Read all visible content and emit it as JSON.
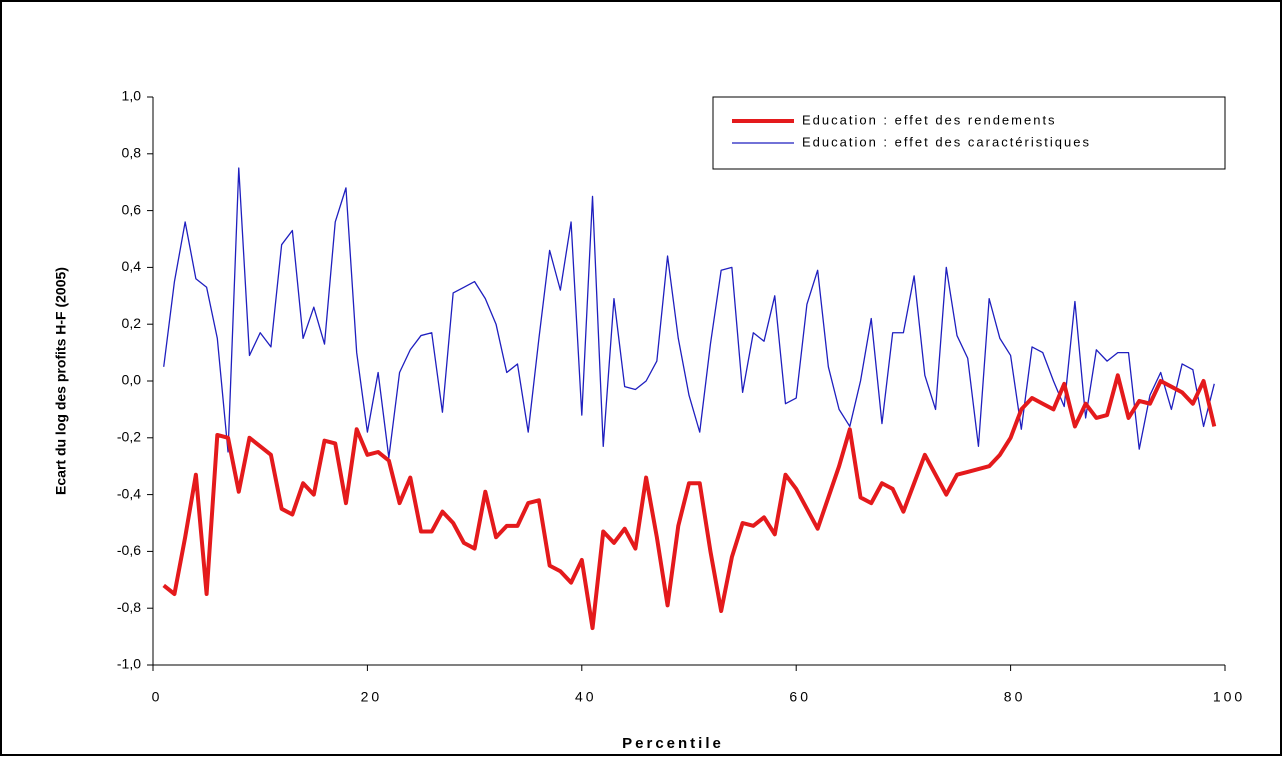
{
  "chart_data": {
    "type": "line",
    "xlabel": "Percentile",
    "ylabel": "Ecart du log des profits H-F (2005)",
    "x": [
      1,
      2,
      3,
      4,
      5,
      6,
      7,
      8,
      9,
      10,
      11,
      12,
      13,
      14,
      15,
      16,
      17,
      18,
      19,
      20,
      21,
      22,
      23,
      24,
      25,
      26,
      27,
      28,
      29,
      30,
      31,
      32,
      33,
      34,
      35,
      36,
      37,
      38,
      39,
      40,
      41,
      42,
      43,
      44,
      45,
      46,
      47,
      48,
      49,
      50,
      51,
      52,
      53,
      54,
      55,
      56,
      57,
      58,
      59,
      60,
      61,
      62,
      63,
      64,
      65,
      66,
      67,
      68,
      69,
      70,
      71,
      72,
      73,
      74,
      75,
      76,
      77,
      78,
      79,
      80,
      81,
      82,
      83,
      84,
      85,
      86,
      87,
      88,
      89,
      90,
      91,
      92,
      93,
      94,
      95,
      96,
      97,
      98,
      99
    ],
    "series": [
      {
        "name": "Education : effet des rendements",
        "color": "#e41a1c",
        "width": 4,
        "values": [
          -0.72,
          -0.75,
          -0.55,
          -0.33,
          -0.75,
          -0.19,
          -0.2,
          -0.39,
          -0.2,
          -0.23,
          -0.26,
          -0.45,
          -0.47,
          -0.36,
          -0.4,
          -0.21,
          -0.22,
          -0.43,
          -0.17,
          -0.26,
          -0.25,
          -0.28,
          -0.43,
          -0.34,
          -0.53,
          -0.53,
          -0.46,
          -0.5,
          -0.57,
          -0.59,
          -0.39,
          -0.55,
          -0.51,
          -0.51,
          -0.43,
          -0.42,
          -0.65,
          -0.67,
          -0.71,
          -0.63,
          -0.87,
          -0.53,
          -0.57,
          -0.52,
          -0.59,
          -0.34,
          -0.55,
          -0.79,
          -0.51,
          -0.36,
          -0.36,
          -0.6,
          -0.81,
          -0.62,
          -0.5,
          -0.51,
          -0.48,
          -0.54,
          -0.33,
          -0.38,
          -0.45,
          -0.52,
          -0.41,
          -0.3,
          -0.17,
          -0.41,
          -0.43,
          -0.36,
          -0.38,
          -0.46,
          -0.36,
          -0.26,
          -0.33,
          -0.4,
          -0.33,
          -0.32,
          -0.31,
          -0.3,
          -0.26,
          -0.2,
          -0.1,
          -0.06,
          -0.08,
          -0.1,
          -0.01,
          -0.16,
          -0.08,
          -0.13,
          -0.12,
          0.02,
          -0.13,
          -0.07,
          -0.08,
          0.0,
          -0.02,
          -0.04,
          -0.08,
          0.0,
          -0.16
        ]
      },
      {
        "name": "Education : effet des caractéristiques",
        "color": "#1f1fbf",
        "width": 1.3,
        "values": [
          0.05,
          0.35,
          0.56,
          0.36,
          0.33,
          0.15,
          -0.25,
          0.75,
          0.09,
          0.17,
          0.12,
          0.48,
          0.53,
          0.15,
          0.26,
          0.13,
          0.56,
          0.68,
          0.1,
          -0.18,
          0.03,
          -0.27,
          0.03,
          0.11,
          0.16,
          0.17,
          -0.11,
          0.31,
          0.33,
          0.35,
          0.29,
          0.2,
          0.03,
          0.06,
          -0.18,
          0.15,
          0.46,
          0.32,
          0.56,
          -0.12,
          0.65,
          -0.23,
          0.29,
          -0.02,
          -0.03,
          0.0,
          0.07,
          0.44,
          0.15,
          -0.05,
          -0.18,
          0.13,
          0.39,
          0.4,
          -0.04,
          0.17,
          0.14,
          0.3,
          -0.08,
          -0.06,
          0.27,
          0.39,
          0.05,
          -0.1,
          -0.16,
          0.0,
          0.22,
          -0.15,
          0.17,
          0.17,
          0.37,
          0.02,
          -0.1,
          0.4,
          0.16,
          0.08,
          -0.23,
          0.29,
          0.15,
          0.09,
          -0.17,
          0.12,
          0.1,
          0.0,
          -0.09,
          0.28,
          -0.13,
          0.11,
          0.07,
          0.1,
          0.1,
          -0.24,
          -0.05,
          0.03,
          -0.1,
          0.06,
          0.04,
          -0.16,
          -0.01
        ]
      }
    ],
    "xlim": [
      0,
      100
    ],
    "xticks": [
      0,
      20,
      40,
      60,
      80,
      100
    ],
    "ylim": [
      -1,
      1
    ],
    "yticks": [
      {
        "value": -1,
        "label": "-1,0"
      },
      {
        "value": -0.8,
        "label": "-0,8"
      },
      {
        "value": -0.6,
        "label": "-0,6"
      },
      {
        "value": -0.4,
        "label": "-0,4"
      },
      {
        "value": -0.2,
        "label": "-0,2"
      },
      {
        "value": 0,
        "label": "0,0"
      },
      {
        "value": 0.2,
        "label": "0,2"
      },
      {
        "value": 0.4,
        "label": "0,4"
      },
      {
        "value": 0.6,
        "label": "0,6"
      },
      {
        "value": 0.8,
        "label": "0,8"
      },
      {
        "value": 1,
        "label": "1,0"
      }
    ]
  }
}
